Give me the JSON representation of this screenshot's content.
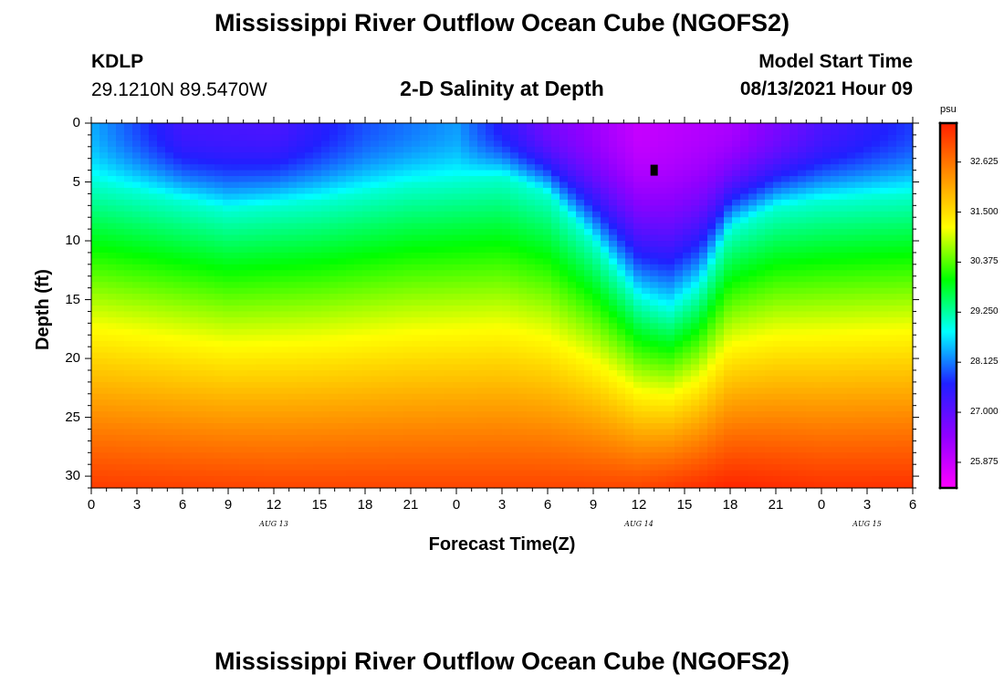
{
  "title": "Mississippi River Outflow Ocean Cube (NGOFS2)",
  "footer_title": "Mississippi River Outflow Ocean Cube (NGOFS2)",
  "station": {
    "id": "KDLP",
    "coords": "29.1210N  89.5470W"
  },
  "model": {
    "label": "Model Start Time",
    "start": "08/13/2021 Hour 09"
  },
  "chart_data": {
    "type": "heatmap",
    "title": "2-D Salinity at Depth",
    "xlabel": "Forecast Time(Z)",
    "ylabel": "Depth (ft)",
    "x_ticks": [
      "0",
      "3",
      "6",
      "9",
      "12",
      "15",
      "18",
      "21",
      "0",
      "3",
      "6",
      "9",
      "12",
      "15",
      "18",
      "21",
      "0",
      "3",
      "6"
    ],
    "x_hours": [
      0,
      3,
      6,
      9,
      12,
      15,
      18,
      21,
      24,
      27,
      30,
      33,
      36,
      39,
      42,
      45,
      48,
      51,
      54
    ],
    "x_range": [
      0,
      54
    ],
    "day_labels": [
      {
        "text": "AUG  13",
        "hour": 12
      },
      {
        "text": "AUG  14",
        "hour": 36
      },
      {
        "text": "AUG  15",
        "hour": 51
      }
    ],
    "y_ticks": [
      "0",
      "5",
      "10",
      "15",
      "20",
      "25",
      "30"
    ],
    "y_values": [
      0,
      5,
      10,
      15,
      20,
      25,
      30
    ],
    "y_range": [
      0,
      31
    ],
    "y_inverted": true,
    "colorbar": {
      "unit": "psu",
      "min": 25.3,
      "max": 33.5,
      "ticks": [
        "25.875",
        "27.000",
        "28.125",
        "29.250",
        "30.375",
        "31.500",
        "32.625"
      ],
      "tick_values": [
        25.875,
        27.0,
        28.125,
        29.25,
        30.375,
        31.5,
        32.625
      ],
      "colors": [
        "#ff00ff",
        "#9000ff",
        "#2020ff",
        "#00ffff",
        "#00ff00",
        "#ffff00",
        "#ff9000",
        "#ff2000"
      ]
    },
    "halocline_depth_ft": [
      {
        "hour": 0,
        "depth": 5.0
      },
      {
        "hour": 6,
        "depth": 6.6
      },
      {
        "hour": 9,
        "depth": 7.4
      },
      {
        "hour": 15,
        "depth": 6.6
      },
      {
        "hour": 21,
        "depth": 5.2
      },
      {
        "hour": 27,
        "depth": 4.5
      },
      {
        "hour": 30,
        "depth": 6.0
      },
      {
        "hour": 33,
        "depth": 10.0
      },
      {
        "hour": 36,
        "depth": 15.0
      },
      {
        "hour": 38,
        "depth": 16.0
      },
      {
        "hour": 40,
        "depth": 14.0
      },
      {
        "hour": 42,
        "depth": 9.0
      },
      {
        "hour": 45,
        "depth": 7.2
      },
      {
        "hour": 48,
        "depth": 6.6
      },
      {
        "hour": 54,
        "depth": 6.0
      }
    ],
    "surface_salinity_psu": [
      {
        "hour": 0,
        "value": 28.4
      },
      {
        "hour": 6,
        "value": 27.3
      },
      {
        "hour": 12,
        "value": 27.2
      },
      {
        "hour": 18,
        "value": 27.9
      },
      {
        "hour": 24,
        "value": 28.3
      },
      {
        "hour": 30,
        "value": 26.8
      },
      {
        "hour": 36,
        "value": 25.9
      },
      {
        "hour": 42,
        "value": 26.2
      },
      {
        "hour": 48,
        "value": 27.2
      },
      {
        "hour": 54,
        "value": 27.8
      }
    ],
    "bottom_salinity_psu": [
      {
        "hour": 0,
        "value": 33.2
      },
      {
        "hour": 12,
        "value": 33.1
      },
      {
        "hour": 24,
        "value": 33.1
      },
      {
        "hour": 36,
        "value": 33.1
      },
      {
        "hour": 42,
        "value": 33.45
      },
      {
        "hour": 48,
        "value": 33.3
      },
      {
        "hour": 54,
        "value": 33.3
      }
    ],
    "marker": {
      "hour": 37,
      "depth": 4
    }
  }
}
